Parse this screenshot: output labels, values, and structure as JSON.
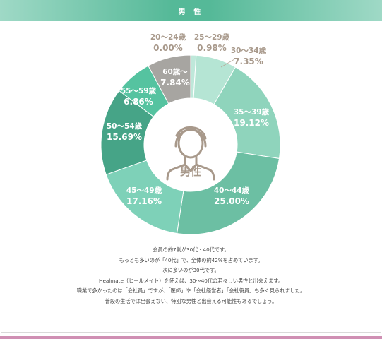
{
  "header": {
    "title": "男 性"
  },
  "colors": {
    "header": "#55b998",
    "accent_pink": "#cf8fb3",
    "label_outside": "#a8998b",
    "label_inside": "#ffffff"
  },
  "chart_data": {
    "type": "pie",
    "center_label": "男性",
    "center_icon": "male-person-icon",
    "slices": [
      {
        "label": "20～24歳",
        "percent_text": "0.00%",
        "value": 0.0,
        "color": "#c9ebe0",
        "label_outside": true
      },
      {
        "label": "25～29歳",
        "percent_text": "0.98%",
        "value": 0.98,
        "color": "#bfe8da",
        "label_outside": true
      },
      {
        "label": "30～34歳",
        "percent_text": "7.35%",
        "value": 7.35,
        "color": "#b5e5d4",
        "label_outside": true
      },
      {
        "label": "35～39歳",
        "percent_text": "19.12%",
        "value": 19.12,
        "color": "#8fd4bc",
        "label_outside": false
      },
      {
        "label": "40～44歳",
        "percent_text": "25.00%",
        "value": 25.0,
        "color": "#6cbfa3",
        "label_outside": false
      },
      {
        "label": "45～49歳",
        "percent_text": "17.16%",
        "value": 17.16,
        "color": "#7ed1b8",
        "label_outside": false
      },
      {
        "label": "50～54歳",
        "percent_text": "15.69%",
        "value": 15.69,
        "color": "#46a487",
        "label_outside": false
      },
      {
        "label": "55～59歳",
        "percent_text": "6.86%",
        "value": 6.86,
        "color": "#55c3a0",
        "label_outside": false
      },
      {
        "label": "60歳～",
        "percent_text": "7.84%",
        "value": 7.84,
        "color": "#a7a5a1",
        "label_outside": false
      }
    ]
  },
  "description": [
    "会員の約7割が30代・40代です。",
    "もっとも多いのが「40代」で、全体の約42%を占めています。",
    "次に多いのが30代です。",
    "Healmate（ヒールメイト）を使えば、30～40代の若々しい男性と出会えます。",
    "職業で多かったのは「会社員」ですが、「医師」や「会社経営者」「会社役員」も多く見られました。",
    "普段の生活では出会えない、特別な男性と出会える可能性もあるでしょう。"
  ]
}
